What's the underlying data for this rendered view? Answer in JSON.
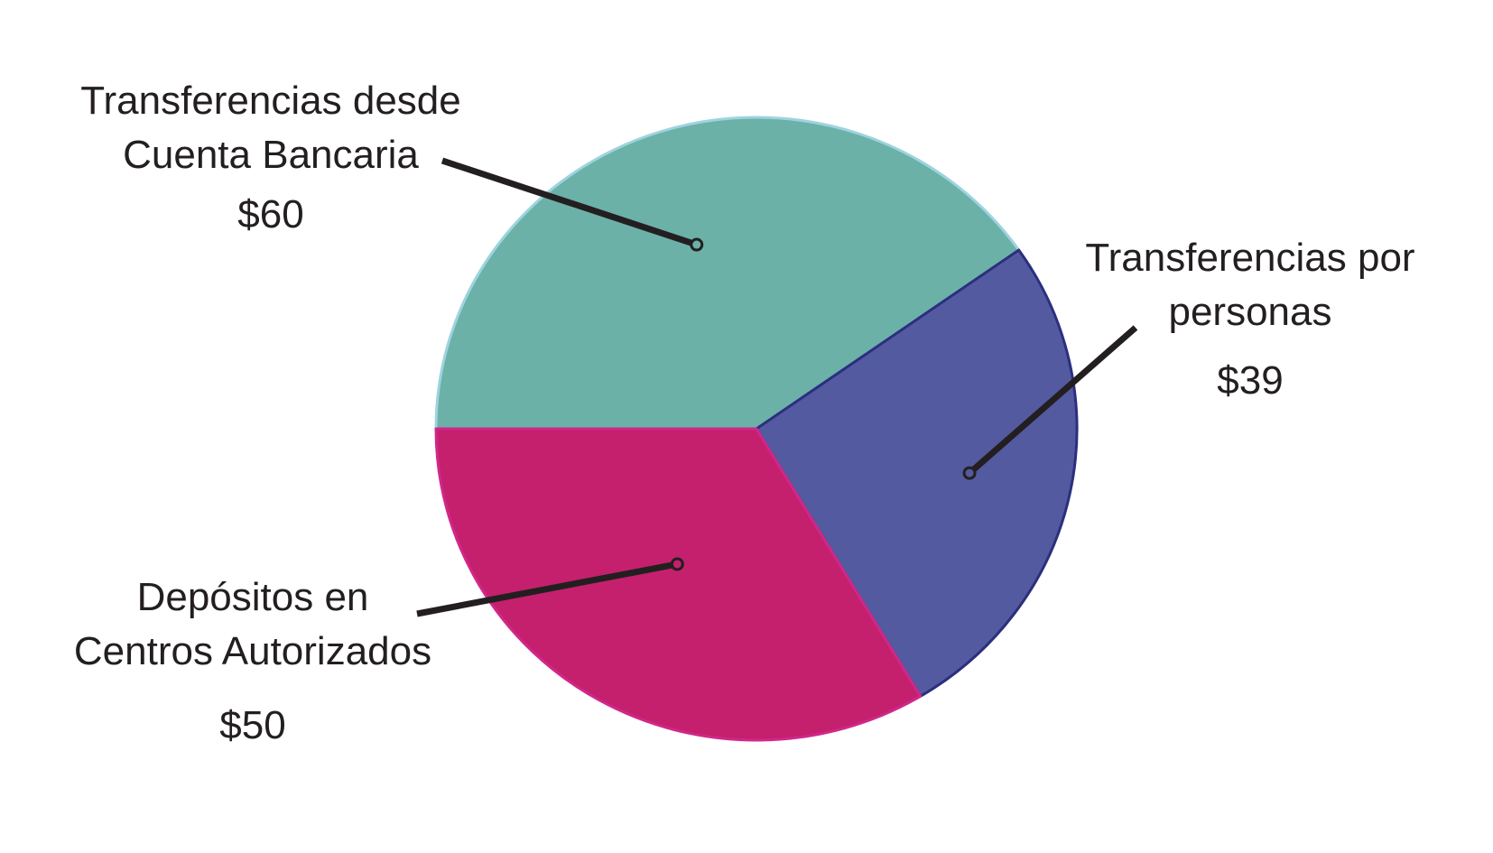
{
  "chart_data": {
    "type": "pie",
    "slices": [
      {
        "label_line1": "Transferencias desde",
        "label_line2": "Cuenta Bancaria",
        "value": 60,
        "value_label": "$60",
        "color": "#6bb1a8",
        "stroke": "#9ed3df"
      },
      {
        "label_line1": "Transferencias por",
        "label_line2": "personas",
        "value": 39,
        "value_label": "$39",
        "color": "#535aa0",
        "stroke": "#2b2f7e"
      },
      {
        "label_line1": "Depósitos en",
        "label_line2": "Centros Autorizados",
        "value": 50,
        "value_label": "$50",
        "color": "#c4206d",
        "stroke": "#d1278a"
      }
    ]
  }
}
